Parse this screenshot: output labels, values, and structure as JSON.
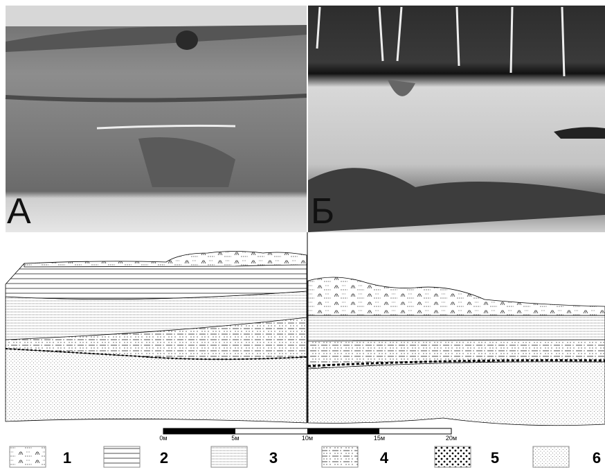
{
  "photos": [
    {
      "label": "А"
    },
    {
      "label": "Б"
    }
  ],
  "scale_bar": {
    "ticks": [
      "0м",
      "5м",
      "10м",
      "15м",
      "20м"
    ]
  },
  "legend": {
    "items": [
      "1",
      "2",
      "3",
      "4",
      "5",
      "6"
    ]
  }
}
